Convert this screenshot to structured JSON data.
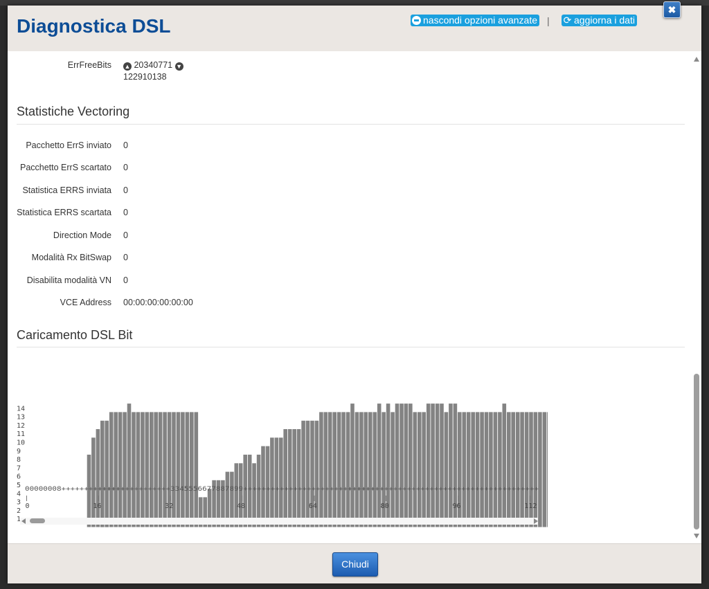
{
  "header": {
    "title": "Diagnostica DSL",
    "hide_advanced_label": "nascondi opzioni avanzate",
    "separator": "|",
    "refresh_label": "aggiorna i dati",
    "close_symbol": "✖"
  },
  "errfree": {
    "label": "ErrFreeBits",
    "upload_icon": "arrow-up-circle-icon",
    "upload_value": "20340771",
    "download_icon": "arrow-down-circle-icon",
    "download_value": "122910138"
  },
  "vectoring": {
    "title": "Statistiche Vectoring",
    "rows": [
      {
        "label": "Pacchetto ErrS inviato",
        "value": "0"
      },
      {
        "label": "Pacchetto ErrS scartato",
        "value": "0"
      },
      {
        "label": "Statistica ERRS inviata",
        "value": "0"
      },
      {
        "label": "Statistica ERRS scartata",
        "value": "0"
      },
      {
        "label": "Direction Mode",
        "value": "0"
      },
      {
        "label": "Modalità Rx BitSwap",
        "value": "0"
      },
      {
        "label": "Disabilita modalità VN",
        "value": "0"
      },
      {
        "label": "VCE Address",
        "value": "00:00:00:00:00:00"
      }
    ]
  },
  "bitloading": {
    "title": "Caricamento DSL Bit"
  },
  "chart_data": {
    "type": "bar",
    "title": "",
    "xlabel": "",
    "ylabel": "",
    "ylim": [
      0,
      14
    ],
    "y_ticks": [
      "1",
      "2",
      "3",
      "4",
      "5",
      "6",
      "7",
      "8",
      "9",
      "10",
      "11",
      "12",
      "13",
      "14"
    ],
    "x_ticks": [
      "0",
      "16",
      "32",
      "48",
      "64",
      "80",
      "96",
      "112"
    ],
    "legend_string": "00000008++++++++++++++++++++++++3345556677887899+++++++++++++++++++++++++++++++++++++++++++++++++++++++++++++++++",
    "values": [
      0,
      0,
      0,
      0,
      0,
      0,
      0,
      8.5,
      10.5,
      11.5,
      12.5,
      12.5,
      13.5,
      13.5,
      13.5,
      13.5,
      14.5,
      13.5,
      13.5,
      13.5,
      13.5,
      13.5,
      13.5,
      13.5,
      13.5,
      13.5,
      13.5,
      13.5,
      13.5,
      13.5,
      13.5,
      13.5,
      3.5,
      3.5,
      4.5,
      5.5,
      5.5,
      5.5,
      6.5,
      6.5,
      7.5,
      7.5,
      8.5,
      8.5,
      7.5,
      8.5,
      9.5,
      9.5,
      10.5,
      10.5,
      10.5,
      11.5,
      11.5,
      11.5,
      11.5,
      12.5,
      12.5,
      12.5,
      12.5,
      13.5,
      13.5,
      13.5,
      13.5,
      13.5,
      13.5,
      13.5,
      14.5,
      13.5,
      13.5,
      13.5,
      13.5,
      13.5,
      14.5,
      13.5,
      14.5,
      13.5,
      14.5,
      14.5,
      14.5,
      14.5,
      13.5,
      13.5,
      13.5,
      14.5,
      14.5,
      14.5,
      14.5,
      13.5,
      14.5,
      14.5,
      13.5,
      13.5,
      13.5,
      13.5,
      13.5,
      13.5,
      13.5,
      13.5,
      13.5,
      13.5,
      14.5,
      13.5,
      13.5,
      13.5,
      13.5,
      13.5,
      13.5,
      13.5,
      13.5,
      13.5,
      13.5,
      13.5,
      13.5,
      13.5,
      13.5,
      13.5
    ]
  },
  "footer": {
    "close_label": "Chiudi"
  }
}
